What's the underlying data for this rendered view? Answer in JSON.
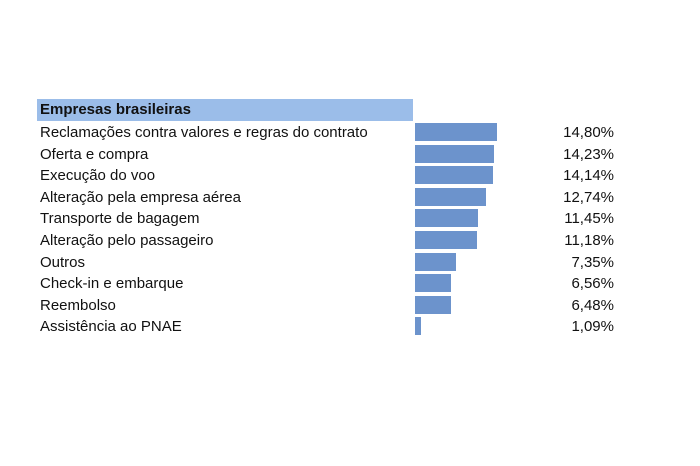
{
  "chart_data": {
    "type": "bar",
    "orientation": "horizontal",
    "title": "Empresas brasileiras",
    "categories": [
      "Reclamações contra valores e regras do contrato",
      "Oferta e compra",
      "Execução do voo",
      "Alteração pela empresa aérea",
      "Transporte de bagagem",
      "Alteração pelo passageiro",
      "Outros",
      "Check-in e embarque",
      "Reembolso",
      "Assistência ao PNAE"
    ],
    "values": [
      14.8,
      14.23,
      14.14,
      12.74,
      11.45,
      11.18,
      7.35,
      6.56,
      6.48,
      1.09
    ],
    "value_labels": [
      "14,80%",
      "14,23%",
      "14,14%",
      "12,74%",
      "11,45%",
      "11,18%",
      "7,35%",
      "6,56%",
      "6,48%",
      "1,09%"
    ],
    "xlim": [
      0,
      14.8
    ],
    "grid": false,
    "colors": {
      "bar": "#6c93cc",
      "header_band": "#9bbde9"
    }
  }
}
